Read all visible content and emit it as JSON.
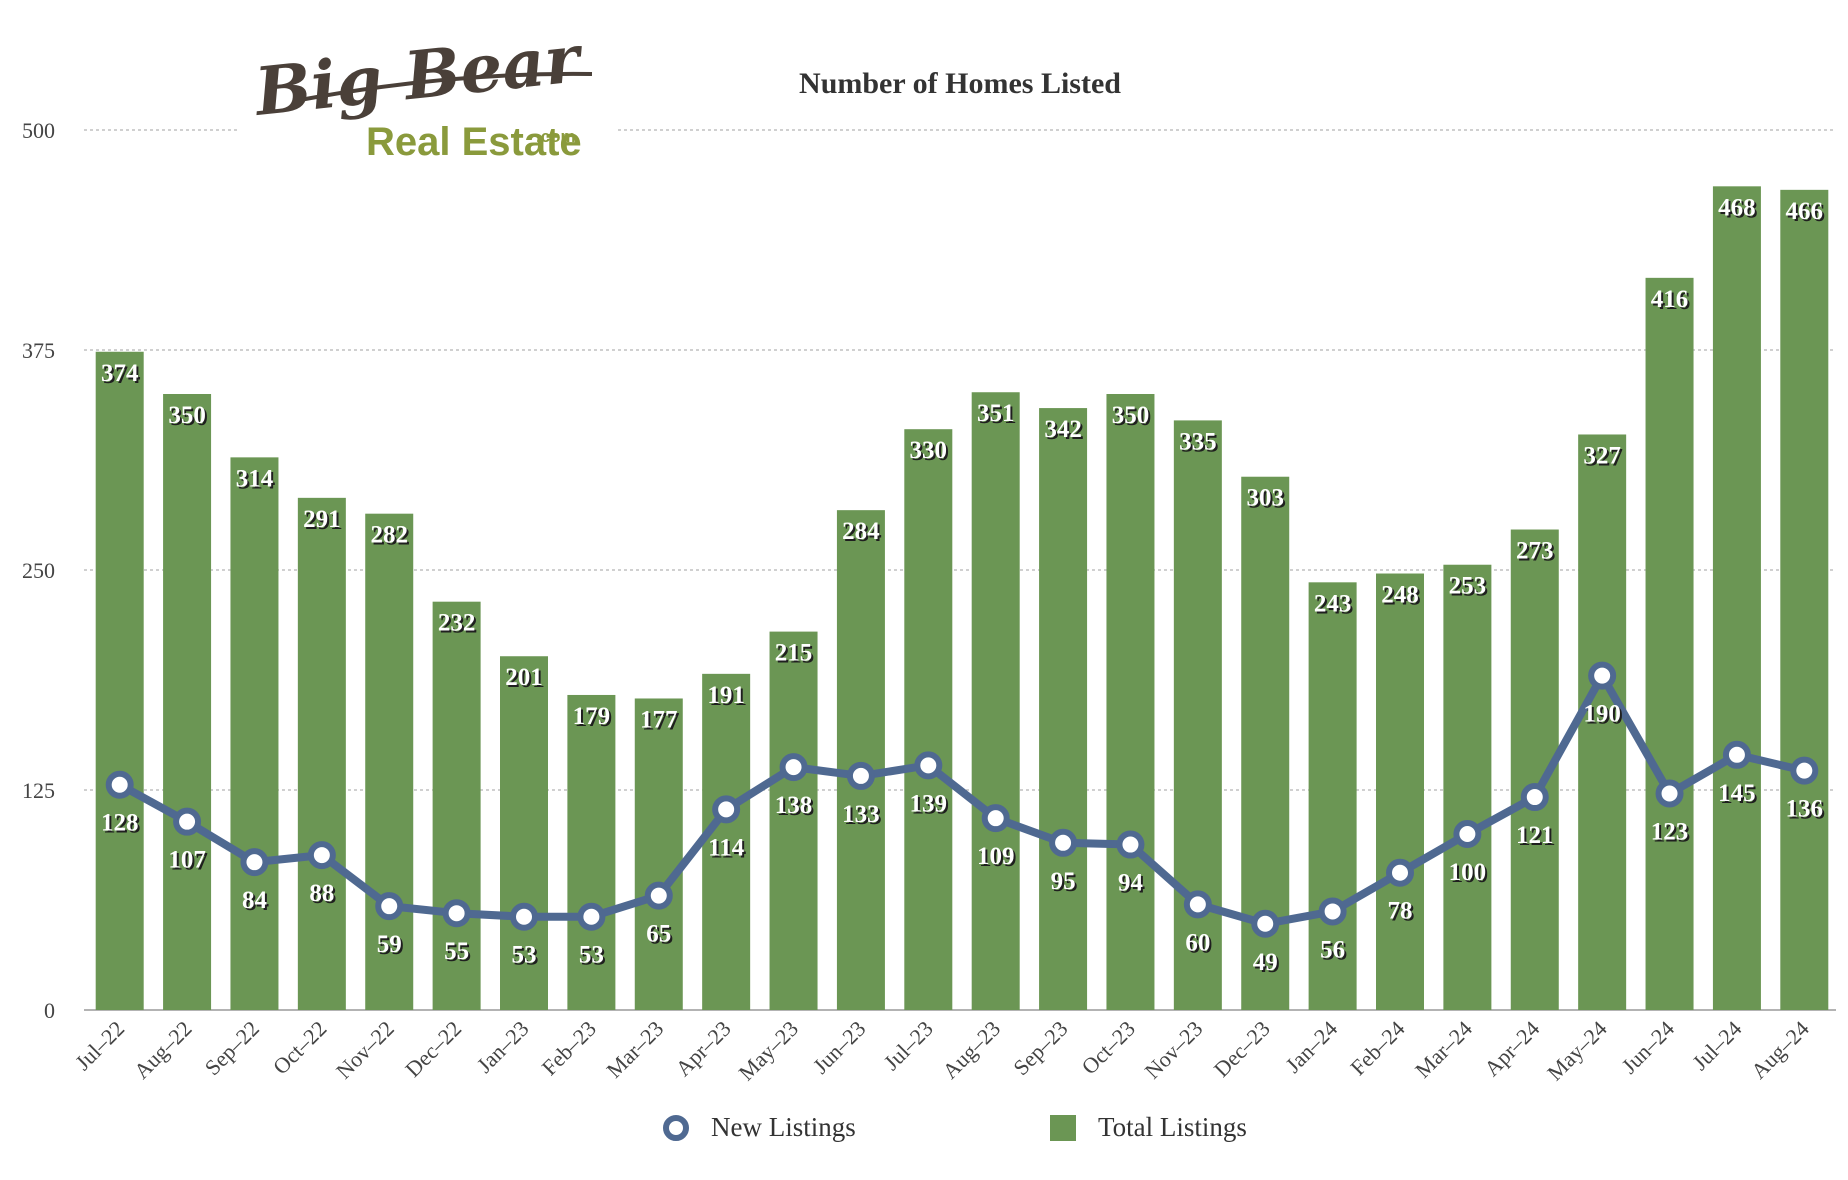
{
  "logo": {
    "main": "Big Bear",
    "sub": "Real Estate",
    "suffix": ".com"
  },
  "chart_data": {
    "type": "bar",
    "title": "Number of Homes Listed",
    "xlabel": "",
    "ylabel": "",
    "ylim": [
      0,
      500
    ],
    "yticks": [
      0,
      125,
      250,
      375,
      500
    ],
    "grid": true,
    "legend_position": "bottom",
    "categories": [
      "Jul–22",
      "Aug–22",
      "Sep–22",
      "Oct–22",
      "Nov–22",
      "Dec–22",
      "Jan–23",
      "Feb–23",
      "Mar–23",
      "Apr–23",
      "May–23",
      "Jun–23",
      "Jul–23",
      "Aug–23",
      "Sep–23",
      "Oct–23",
      "Nov–23",
      "Dec–23",
      "Jan–24",
      "Feb–24",
      "Mar–24",
      "Apr–24",
      "May–24",
      "Jun–24",
      "Jul–24",
      "Aug–24"
    ],
    "series": [
      {
        "name": "Total Listings",
        "type": "bar",
        "color": "#6B9654",
        "values": [
          374,
          350,
          314,
          291,
          282,
          232,
          201,
          179,
          177,
          191,
          215,
          284,
          330,
          351,
          342,
          350,
          335,
          303,
          243,
          248,
          253,
          273,
          327,
          416,
          468,
          466
        ]
      },
      {
        "name": "New Listings",
        "type": "line",
        "color": "#4F6991",
        "values": [
          128,
          107,
          84,
          88,
          59,
          55,
          53,
          53,
          65,
          114,
          138,
          133,
          139,
          109,
          95,
          94,
          60,
          49,
          56,
          78,
          100,
          121,
          190,
          123,
          145,
          136
        ]
      }
    ]
  }
}
